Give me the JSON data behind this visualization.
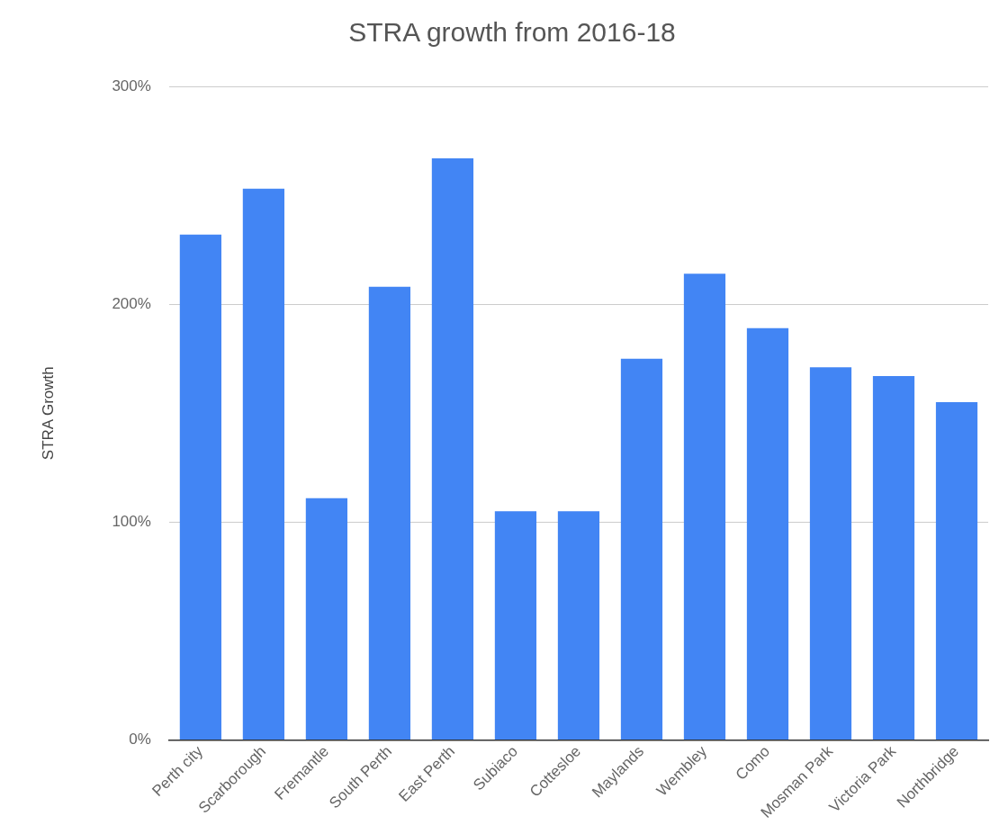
{
  "chart_data": {
    "type": "bar",
    "title": "STRA growth from 2016-18",
    "ylabel": "STRA Growth",
    "categories": [
      "Perth city",
      "Scarborough",
      "Fremantle",
      "South Perth",
      "East Perth",
      "Subiaco",
      "Cottesloe",
      "Maylands",
      "Wembley",
      "Como",
      "Mosman Park",
      "Victoria Park",
      "Northbridge"
    ],
    "values": [
      232,
      253,
      111,
      208,
      267,
      105,
      105,
      175,
      214,
      189,
      171,
      167,
      155
    ],
    "color": "#4285f4",
    "ylim": [
      0,
      300
    ],
    "yticks": [
      {
        "value": 0,
        "label": "0%"
      },
      {
        "value": 100,
        "label": "100%"
      },
      {
        "value": 200,
        "label": "200%"
      },
      {
        "value": 300,
        "label": "300%"
      }
    ],
    "grid": "y",
    "legend": false
  }
}
